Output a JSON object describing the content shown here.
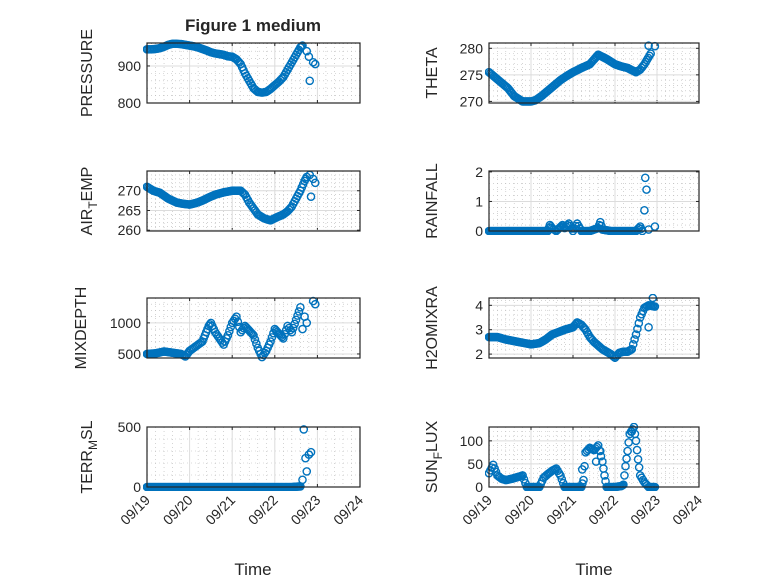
{
  "chart_data": {
    "type": "scatter",
    "title": "Figure 1 medium",
    "xlabel": "Time",
    "xlim": [
      0,
      5
    ],
    "x_units": "days since 09/19",
    "xtick_labels": [
      "09/19",
      "09/20",
      "09/21",
      "09/22",
      "09/23",
      "09/24"
    ],
    "grid": true,
    "minor_grid": true,
    "marker": "circle",
    "color": "#0072BD",
    "panels": [
      {
        "name": "pressure",
        "ylabel": "PRESSURE",
        "ylim": [
          800,
          962
        ],
        "yticks": [
          800,
          900
        ],
        "x": [
          0,
          0.1,
          0.2,
          0.3,
          0.4,
          0.5,
          0.6,
          0.7,
          0.8,
          0.9,
          1.0,
          1.1,
          1.2,
          1.3,
          1.4,
          1.5,
          1.6,
          1.7,
          1.8,
          1.9,
          2.0,
          2.1,
          2.2,
          2.3,
          2.4,
          2.5,
          2.6,
          2.7,
          2.8,
          2.9,
          3.0,
          3.1,
          3.2,
          3.3,
          3.4,
          3.5,
          3.6,
          3.65
        ],
        "y": [
          945,
          945,
          946,
          948,
          952,
          957,
          960,
          960,
          959,
          957,
          955,
          953,
          950,
          946,
          942,
          937,
          934,
          932,
          930,
          926,
          925,
          918,
          905,
          880,
          860,
          840,
          830,
          828,
          830,
          838,
          848,
          858,
          870,
          890,
          910,
          930,
          950,
          955
        ],
        "outliers_x": [
          3.75,
          3.8,
          3.82,
          3.9,
          3.95
        ],
        "outliers_y": [
          940,
          925,
          860,
          910,
          905
        ]
      },
      {
        "name": "theta",
        "ylabel": "THETA",
        "ylim": [
          269.7,
          281
        ],
        "yticks": [
          270,
          275,
          280
        ],
        "x": [
          0,
          0.15,
          0.3,
          0.45,
          0.6,
          0.8,
          1.0,
          1.1,
          1.25,
          1.4,
          1.55,
          1.7,
          1.85,
          2.0,
          2.2,
          2.4,
          2.6,
          2.8,
          3.0,
          3.15,
          3.3,
          3.5,
          3.6,
          3.7,
          3.85
        ],
        "y": [
          275.5,
          274.5,
          273.5,
          272.5,
          271,
          270,
          270,
          270.2,
          271,
          272,
          273,
          274,
          274.8,
          275.5,
          276.3,
          277,
          278.8,
          278,
          277,
          276.6,
          276.3,
          275.5,
          276,
          277,
          279
        ],
        "outliers_x": [
          3.8,
          3.95
        ],
        "outliers_y": [
          280.5,
          280.4
        ]
      },
      {
        "name": "air_temp",
        "ylabel": "AIR_TEMP",
        "ylim": [
          259.8,
          275
        ],
        "yticks": [
          260,
          265,
          270
        ],
        "x": [
          0,
          0.15,
          0.3,
          0.5,
          0.7,
          0.85,
          1.0,
          1.15,
          1.3,
          1.45,
          1.6,
          1.8,
          2.0,
          2.2,
          2.3,
          2.4,
          2.5,
          2.6,
          2.75,
          2.9,
          3.05,
          3.2,
          3.3,
          3.4,
          3.5,
          3.6,
          3.7,
          3.75
        ],
        "y": [
          271,
          270,
          269.5,
          268,
          267,
          266.7,
          266.5,
          266.9,
          267.5,
          268.3,
          269,
          269.6,
          270,
          270,
          269,
          267,
          265.5,
          264,
          263,
          262.5,
          263.3,
          264,
          264.8,
          266,
          268,
          270,
          272.5,
          273.5
        ],
        "outliers_x": [
          3.85,
          3.82,
          3.9,
          3.95
        ],
        "outliers_y": [
          268.5,
          274,
          273,
          272
        ]
      },
      {
        "name": "rainfall",
        "ylabel": "RAINFALL",
        "ylim": [
          0,
          2.03
        ],
        "yticks": [
          0,
          1,
          2
        ],
        "x": [
          0,
          0.5,
          1.0,
          1.4,
          1.45,
          1.5,
          1.6,
          1.75,
          1.8,
          1.9,
          2.0,
          2.1,
          2.2,
          2.4,
          2.6,
          2.65,
          2.7,
          2.9,
          3.2,
          3.5,
          3.6,
          3.65
        ],
        "y": [
          0,
          0,
          0,
          0,
          0.2,
          0.1,
          0,
          0.2,
          0.1,
          0.25,
          0,
          0.25,
          0,
          0,
          0.1,
          0.3,
          0.05,
          0,
          0,
          0,
          0.15,
          0
        ],
        "outliers_x": [
          3.7,
          3.72,
          3.75,
          3.8,
          3.95
        ],
        "outliers_y": [
          0.7,
          1.8,
          1.4,
          0.05,
          0.15
        ]
      },
      {
        "name": "mixdepth",
        "ylabel": "MIXDEPTH",
        "ylim": [
          435,
          1400
        ],
        "yticks": [
          500,
          1000
        ],
        "x": [
          0,
          0.2,
          0.4,
          0.6,
          0.8,
          0.9,
          1.0,
          1.1,
          1.2,
          1.3,
          1.45,
          1.5,
          1.6,
          1.7,
          1.8,
          1.9,
          2.0,
          2.1,
          2.2,
          2.3,
          2.5,
          2.6,
          2.7,
          2.8,
          2.9,
          3.0,
          3.2,
          3.3,
          3.4,
          3.5,
          3.6
        ],
        "y": [
          500,
          510,
          540,
          520,
          500,
          460,
          550,
          600,
          650,
          700,
          950,
          1000,
          850,
          750,
          650,
          800,
          1000,
          1100,
          850,
          950,
          800,
          600,
          450,
          550,
          700,
          900,
          750,
          950,
          850,
          1050,
          1250
        ],
        "outliers_x": [
          3.65,
          3.75,
          3.7,
          3.9,
          3.95
        ],
        "outliers_y": [
          900,
          1000,
          1100,
          1350,
          1300
        ]
      },
      {
        "name": "h2omixra",
        "ylabel": "H2OMIXRA",
        "ylim": [
          1.84,
          4.3
        ],
        "yticks": [
          2,
          3,
          4
        ],
        "x": [
          0,
          0.2,
          0.4,
          0.7,
          1.0,
          1.2,
          1.35,
          1.5,
          1.65,
          1.8,
          2.0,
          2.1,
          2.2,
          2.3,
          2.4,
          2.5,
          2.6,
          2.7,
          2.8,
          2.9,
          3.0,
          3.1,
          3.2,
          3.3,
          3.4,
          3.5,
          3.6,
          3.7,
          3.8,
          3.95
        ],
        "y": [
          2.7,
          2.7,
          2.6,
          2.5,
          2.4,
          2.45,
          2.6,
          2.8,
          2.9,
          3.0,
          3.1,
          3.3,
          3.2,
          3.0,
          2.7,
          2.5,
          2.35,
          2.2,
          2.1,
          2.0,
          1.85,
          2.05,
          2.1,
          2.1,
          2.2,
          2.8,
          3.5,
          3.9,
          4.0,
          3.95
        ],
        "outliers_x": [
          3.8,
          3.9
        ],
        "outliers_y": [
          3.1,
          4.3
        ]
      },
      {
        "name": "terr_msl",
        "ylabel": "TERR_MSL",
        "ylim": [
          0,
          500
        ],
        "yticks": [
          0,
          500
        ],
        "x": [
          0,
          0.5,
          1.0,
          1.5,
          2.0,
          2.5,
          3.0,
          3.4,
          3.6
        ],
        "y": [
          0,
          0,
          0,
          0,
          0,
          0,
          0,
          0,
          5
        ],
        "outliers_x": [
          3.65,
          3.68,
          3.72,
          3.75,
          3.8,
          3.85
        ],
        "outliers_y": [
          60,
          480,
          240,
          130,
          270,
          290
        ]
      },
      {
        "name": "sun_flux",
        "ylabel": "SUN_FLUX",
        "ylim": [
          0,
          130
        ],
        "yticks": [
          0,
          50,
          100
        ],
        "x": [
          0,
          0.1,
          0.2,
          0.3,
          0.4,
          0.55,
          0.7,
          0.8,
          0.9,
          1.0,
          1.2,
          1.3,
          1.4,
          1.5,
          1.6,
          1.7,
          1.8,
          2.0,
          2.2,
          2.25,
          2.3,
          2.4,
          2.5,
          2.6,
          2.7,
          2.75,
          2.8,
          3.0,
          3.15,
          3.2,
          3.25,
          3.3,
          3.35,
          3.45,
          3.5,
          3.55,
          3.6,
          3.7,
          3.8,
          3.95
        ],
        "y": [
          30,
          48,
          25,
          18,
          15,
          18,
          22,
          25,
          0,
          0,
          0,
          20,
          28,
          35,
          40,
          25,
          0,
          0,
          0,
          15,
          75,
          85,
          80,
          90,
          55,
          25,
          0,
          0,
          2,
          5,
          45,
          78,
          115,
          130,
          100,
          60,
          25,
          10,
          0,
          0
        ],
        "outliers_x": [
          2.22,
          2.55,
          2.65,
          3.4
        ],
        "outliers_y": [
          38,
          55,
          78,
          120
        ]
      }
    ]
  }
}
